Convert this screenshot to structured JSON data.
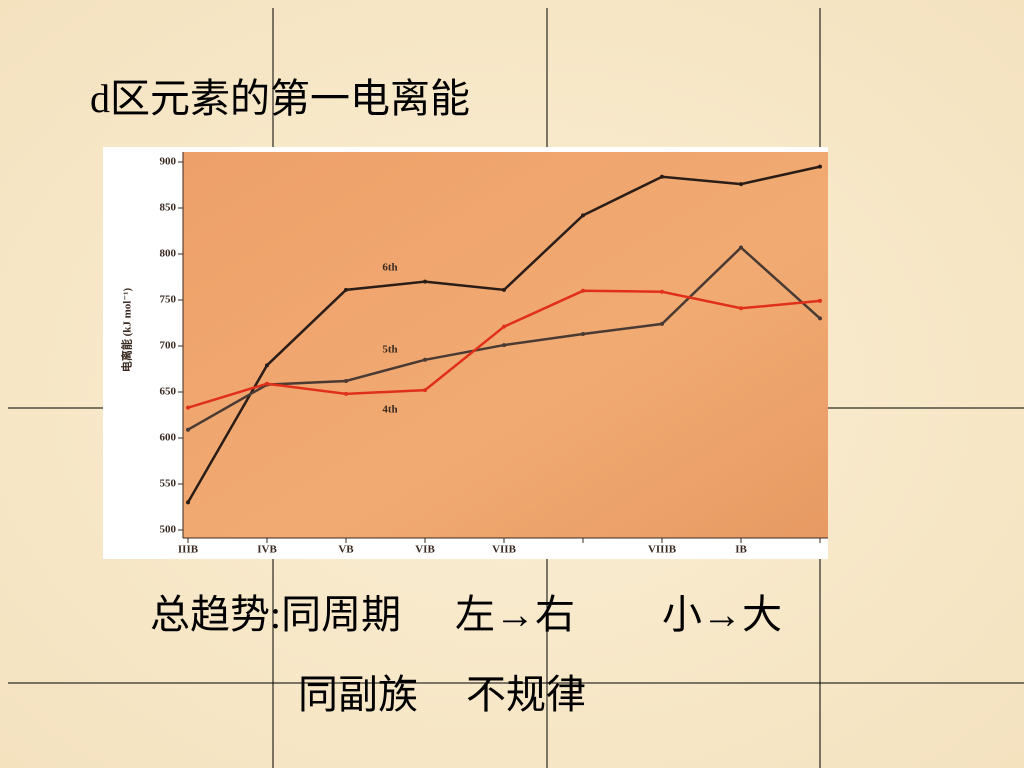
{
  "slide": {
    "title": "d区元素的第一电离能",
    "lines": [
      [
        "总趋势:同周期",
        "左→右",
        "小→大"
      ],
      [
        "同副族",
        "不规律"
      ]
    ]
  },
  "chart_data": {
    "type": "line",
    "y_label": "电离能 (kJ mol⁻¹)",
    "categories": [
      "IIIB",
      "IVB",
      "VB",
      "VIB",
      "VIIB",
      null,
      "VIIIB",
      "IB",
      null
    ],
    "series": [
      {
        "name": "6th",
        "color": "#2a1c16",
        "values": [
          530,
          679,
          761,
          770,
          761,
          842,
          884,
          876,
          895
        ]
      },
      {
        "name": "5th",
        "color": "#4a3a34",
        "values": [
          609,
          658,
          662,
          685,
          701,
          713,
          724,
          807,
          730
        ]
      },
      {
        "name": "4th",
        "color": "#e0301a",
        "values": [
          633,
          659,
          648,
          652,
          721,
          760,
          759,
          741,
          749
        ]
      }
    ],
    "ylim": [
      500,
      900
    ],
    "yticks": [
      500,
      550,
      600,
      650,
      700,
      750,
      800,
      850,
      900
    ]
  }
}
